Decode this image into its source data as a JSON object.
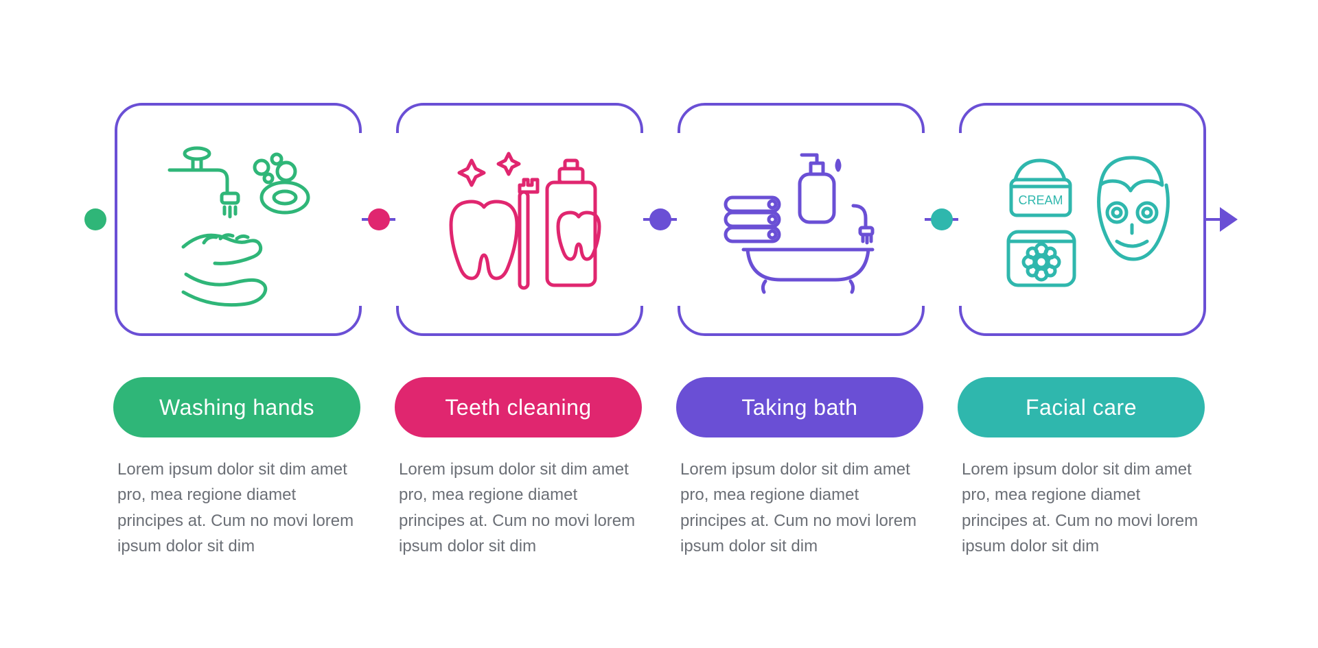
{
  "type": "infographic",
  "layout": "horizontal-flow-4",
  "background_color": "#ffffff",
  "connector_color": "#6a4fd5",
  "connector_width": 4,
  "card_border_radius": 40,
  "card_border_width": 4,
  "pill_height": 88,
  "pill_font_size": 32,
  "desc_font_size": 24,
  "desc_color": "#6b6f76",
  "label_text_color": "#ffffff",
  "start_dot_color": "#2fb678",
  "arrow_color": "#6a4fd5",
  "steps": [
    {
      "id": "washing-hands",
      "label": "Washing hands",
      "pill_color": "#2fb678",
      "dot_color": "#2fb678",
      "icon_stroke": "#2fb678",
      "icon": "washing-hands-icon",
      "description": "Lorem ipsum dolor sit dim amet pro, mea regione diamet principes at. Cum no movi lorem ipsum dolor sit dim"
    },
    {
      "id": "teeth-cleaning",
      "label": "Teeth cleaning",
      "pill_color": "#e0266f",
      "dot_color": "#e0266f",
      "icon_stroke": "#e0266f",
      "icon": "teeth-cleaning-icon",
      "description": "Lorem ipsum dolor sit dim amet pro, mea regione diamet principes at. Cum no movi lorem ipsum dolor sit dim"
    },
    {
      "id": "taking-bath",
      "label": "Taking bath",
      "pill_color": "#6a4fd5",
      "dot_color": "#6a4fd5",
      "icon_stroke": "#6a4fd5",
      "icon": "taking-bath-icon",
      "description": "Lorem ipsum dolor sit dim amet pro, mea regione diamet principes at. Cum no movi lorem ipsum dolor sit dim"
    },
    {
      "id": "facial-care",
      "label": "Facial care",
      "pill_color": "#2fb7ad",
      "dot_color": "#2fb7ad",
      "icon_stroke": "#2fb7ad",
      "icon": "facial-care-icon",
      "icon_text": "CREAM",
      "description": "Lorem ipsum dolor sit dim amet pro, mea regione diamet principes at. Cum no movi lorem ipsum dolor sit dim"
    }
  ]
}
